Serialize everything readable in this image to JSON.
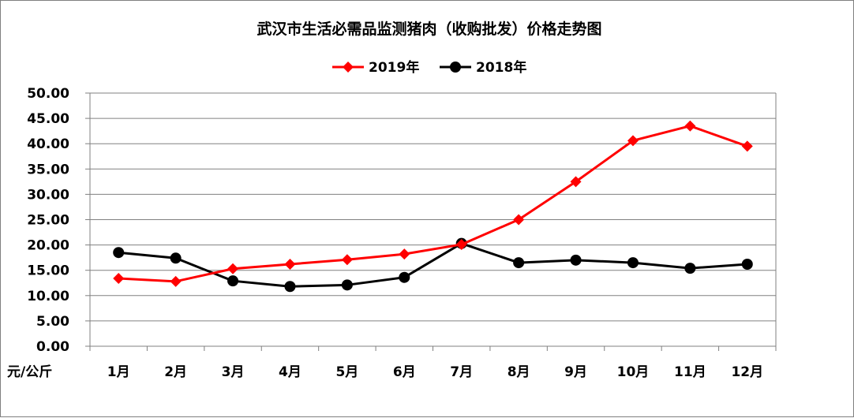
{
  "chart_data": {
    "type": "line",
    "title": "武汉市生活必需品监测猪肉（收购批发）价格走势图",
    "ylabel": "元/公斤",
    "xlabel": "",
    "categories": [
      "1月",
      "2月",
      "3月",
      "4月",
      "5月",
      "6月",
      "7月",
      "8月",
      "9月",
      "10月",
      "11月",
      "12月"
    ],
    "ylim": [
      0,
      50
    ],
    "yticks": [
      "0.00",
      "5.00",
      "10.00",
      "15.00",
      "20.00",
      "25.00",
      "30.00",
      "35.00",
      "40.00",
      "45.00",
      "50.00"
    ],
    "grid": true,
    "legend_position": "top",
    "series": [
      {
        "name": "2019年",
        "color": "#ff0000",
        "marker": "diamond",
        "values": [
          13.4,
          12.8,
          15.3,
          16.2,
          17.1,
          18.2,
          20.1,
          25.0,
          32.5,
          40.6,
          43.5,
          39.5
        ]
      },
      {
        "name": "2018年",
        "color": "#000000",
        "marker": "circle",
        "values": [
          18.5,
          17.4,
          12.9,
          11.8,
          12.1,
          13.6,
          20.3,
          16.5,
          17.0,
          16.5,
          15.4,
          16.2
        ]
      }
    ]
  }
}
